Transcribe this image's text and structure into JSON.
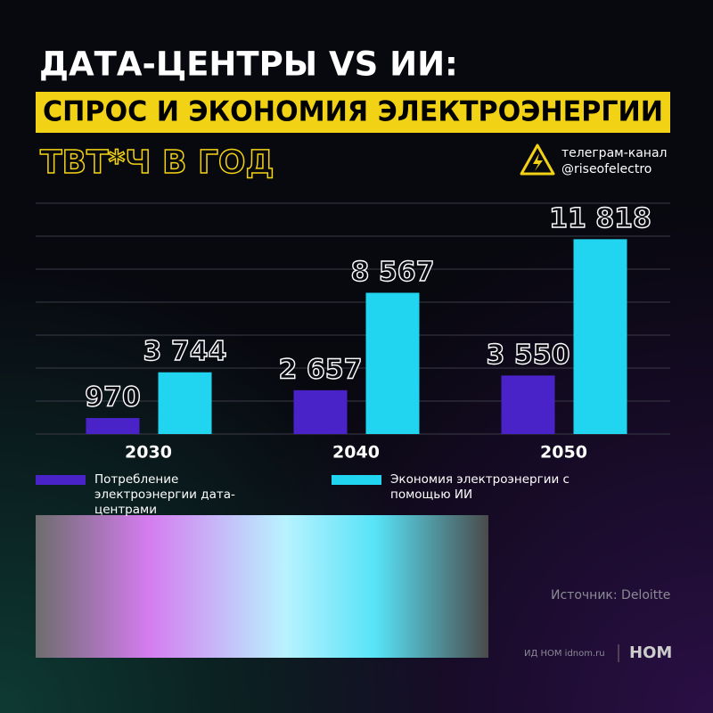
{
  "header": {
    "title": "ДАТА-ЦЕНТРЫ VS ИИ:",
    "subtitle": "СПРОС И ЭКОНОМИЯ ЭЛЕКТРОЭНЕРГИИ",
    "channel_label": "телеграм-канал",
    "channel_handle": "@riseofelectro"
  },
  "chart_data": {
    "type": "bar",
    "unit": "ТВТ*Ч В ГОД",
    "categories": [
      "2030",
      "2040",
      "2050"
    ],
    "series": [
      {
        "name": "Потребление электроэнергии дата-центрами",
        "color": "#4a23c8",
        "values": [
          970,
          2657,
          3550
        ],
        "value_labels": [
          "970",
          "2 657",
          "3 550"
        ]
      },
      {
        "name": "Экономия электроэнергии с помощью ИИ",
        "color": "#21d4f0",
        "values": [
          3744,
          8567,
          11818
        ],
        "value_labels": [
          "3 744",
          "8 567",
          "11 818"
        ]
      }
    ],
    "ylim": [
      0,
      14000
    ],
    "yticks": [
      0,
      2000,
      4000,
      6000,
      8000,
      10000,
      12000,
      14000
    ],
    "grid": true
  },
  "footer": {
    "source": "Источник: Deloitte",
    "publisher": "ИД НОМ idnom.ru",
    "logo": "НОМ"
  }
}
